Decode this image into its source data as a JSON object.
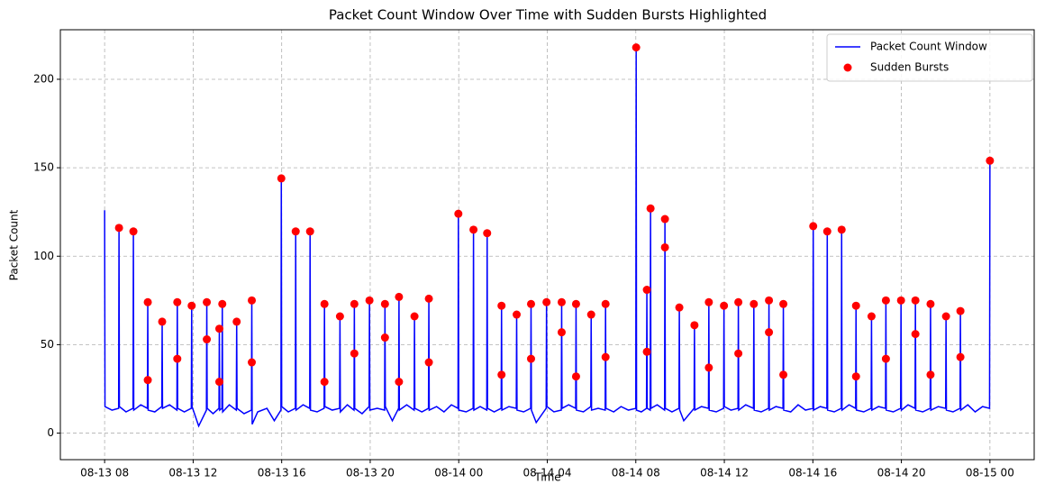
{
  "chart_data": {
    "type": "line",
    "title": "Packet Count Window Over Time with Sudden Bursts Highlighted",
    "x_label": "Time",
    "y_label": "Packet Count",
    "xlim": [
      "08-13 06:00",
      "08-15 02:00"
    ],
    "xticks": [
      "08-13 08",
      "08-13 12",
      "08-13 16",
      "08-13 20",
      "08-14 00",
      "08-14 04",
      "08-14 08",
      "08-14 12",
      "08-14 16",
      "08-14 20",
      "08-15 00"
    ],
    "ylim": [
      -15,
      228
    ],
    "yticks": [
      0,
      50,
      100,
      150,
      200
    ],
    "grid": true,
    "legend": "upper right",
    "series": [
      {
        "name": "Packet Count Window",
        "type": "line",
        "color": "#0000ff",
        "x": [
          "08-13 08:00",
          "08-13 08:01",
          "08-13 08:20",
          "08-13 08:38",
          "08-13 08:39",
          "08-13 08:40",
          "08-13 08:58",
          "08-13 09:17",
          "08-13 09:18",
          "08-13 09:19",
          "08-13 09:38",
          "08-13 09:56",
          "08-13 09:57",
          "08-13 09:58",
          "08-13 10:16",
          "08-13 10:35",
          "08-13 10:36",
          "08-13 10:37",
          "08-13 10:56",
          "08-13 11:16",
          "08-13 11:17",
          "08-13 11:18",
          "08-13 11:36",
          "08-13 11:55",
          "08-13 11:56",
          "08-13 11:57",
          "08-13 12:15",
          "08-13 12:36",
          "08-13 12:37",
          "08-13 12:38",
          "08-13 12:54",
          "08-13 13:10",
          "08-13 13:11",
          "08-13 13:12",
          "08-13 13:18",
          "08-13 13:19",
          "08-13 13:20",
          "08-13 13:38",
          "08-13 13:57",
          "08-13 13:58",
          "08-13 13:59",
          "08-13 14:18",
          "08-13 14:38",
          "08-13 14:39",
          "08-13 14:40",
          "08-13 14:55",
          "08-13 15:20",
          "08-13 15:40",
          "08-13 15:58",
          "08-13 15:59",
          "08-13 16:00",
          "08-13 16:18",
          "08-13 16:37",
          "08-13 16:38",
          "08-13 16:39",
          "08-13 16:58",
          "08-13 17:16",
          "08-13 17:17",
          "08-13 17:18",
          "08-13 17:36",
          "08-13 17:55",
          "08-13 17:56",
          "08-13 17:57",
          "08-13 18:17",
          "08-13 18:37",
          "08-13 18:38",
          "08-13 18:39",
          "08-13 18:58",
          "08-13 19:16",
          "08-13 19:17",
          "08-13 19:18",
          "08-13 19:38",
          "08-13 19:57",
          "08-13 19:58",
          "08-13 19:59",
          "08-13 20:19",
          "08-13 20:39",
          "08-13 20:40",
          "08-13 20:41",
          "08-13 21:00",
          "08-13 21:17",
          "08-13 21:18",
          "08-13 21:19",
          "08-13 21:39",
          "08-13 21:59",
          "08-13 22:00",
          "08-13 22:01",
          "08-13 22:20",
          "08-13 22:38",
          "08-13 22:39",
          "08-13 22:40",
          "08-13 23:00",
          "08-13 23:20",
          "08-13 23:40",
          "08-13 23:58",
          "08-13 23:59",
          "08-14 00:00",
          "08-14 00:20",
          "08-14 00:39",
          "08-14 00:40",
          "08-14 00:41",
          "08-14 00:58",
          "08-14 01:16",
          "08-14 01:17",
          "08-14 01:18",
          "08-14 01:36",
          "08-14 01:55",
          "08-14 01:56",
          "08-14 01:57",
          "08-14 02:16",
          "08-14 02:36",
          "08-14 02:37",
          "08-14 02:38",
          "08-14 02:56",
          "08-14 03:15",
          "08-14 03:16",
          "08-14 03:17",
          "08-14 03:30",
          "08-14 03:57",
          "08-14 03:58",
          "08-14 03:59",
          "08-14 04:18",
          "08-14 04:38",
          "08-14 04:39",
          "08-14 04:40",
          "08-14 04:58",
          "08-14 05:17",
          "08-14 05:18",
          "08-14 05:19",
          "08-14 05:38",
          "08-14 05:58",
          "08-14 05:59",
          "08-14 06:00",
          "08-14 06:18",
          "08-14 06:37",
          "08-14 06:38",
          "08-14 06:39",
          "08-14 07:00",
          "08-14 07:20",
          "08-14 07:40",
          "08-14 08:00",
          "08-14 08:01",
          "08-14 08:02",
          "08-14 08:15",
          "08-14 08:29",
          "08-14 08:30",
          "08-14 08:31",
          "08-14 08:39",
          "08-14 08:40",
          "08-14 08:41",
          "08-14 08:58",
          "08-14 09:18",
          "08-14 09:19",
          "08-14 09:20",
          "08-14 09:38",
          "08-14 09:57",
          "08-14 09:58",
          "08-14 09:59",
          "08-14 10:10",
          "08-14 10:38",
          "08-14 10:39",
          "08-14 10:40",
          "08-14 10:58",
          "08-14 11:17",
          "08-14 11:18",
          "08-14 11:19",
          "08-14 11:38",
          "08-14 11:58",
          "08-14 11:59",
          "08-14 12:00",
          "08-14 12:18",
          "08-14 12:37",
          "08-14 12:38",
          "08-14 12:39",
          "08-14 12:58",
          "08-14 13:19",
          "08-14 13:20",
          "08-14 13:21",
          "08-14 13:40",
          "08-14 14:00",
          "08-14 14:01",
          "08-14 14:02",
          "08-14 14:20",
          "08-14 14:39",
          "08-14 14:40",
          "08-14 14:41",
          "08-14 15:00",
          "08-14 15:20",
          "08-14 15:40",
          "08-14 16:00",
          "08-14 16:01",
          "08-14 16:02",
          "08-14 16:20",
          "08-14 16:38",
          "08-14 16:39",
          "08-14 16:40",
          "08-14 16:58",
          "08-14 17:17",
          "08-14 17:18",
          "08-14 17:19",
          "08-14 17:38",
          "08-14 17:56",
          "08-14 17:57",
          "08-14 17:58",
          "08-14 18:18",
          "08-14 18:38",
          "08-14 18:39",
          "08-14 18:40",
          "08-14 18:58",
          "08-14 19:17",
          "08-14 19:18",
          "08-14 19:19",
          "08-14 19:38",
          "08-14 19:58",
          "08-14 19:59",
          "08-14 20:00",
          "08-14 20:18",
          "08-14 20:37",
          "08-14 20:38",
          "08-14 20:39",
          "08-14 20:58",
          "08-14 21:18",
          "08-14 21:19",
          "08-14 21:20",
          "08-14 21:40",
          "08-14 22:00",
          "08-14 22:01",
          "08-14 22:02",
          "08-14 22:20",
          "08-14 22:39",
          "08-14 22:40",
          "08-14 22:41",
          "08-14 23:00",
          "08-14 23:20",
          "08-14 23:40",
          "08-14 23:59",
          "08-15 00:00"
        ],
        "values": [
          126,
          15,
          13,
          14,
          116,
          15,
          12,
          14,
          114,
          13,
          16,
          14,
          74,
          13,
          12,
          15,
          63,
          14,
          16,
          13,
          74,
          14,
          12,
          14,
          72,
          15,
          4,
          13,
          74,
          14,
          11,
          14,
          59,
          13,
          14,
          73,
          12,
          16,
          13,
          63,
          14,
          11,
          13,
          75,
          5,
          12,
          14,
          7,
          13,
          144,
          15,
          12,
          14,
          114,
          13,
          16,
          14,
          114,
          13,
          12,
          14,
          73,
          15,
          13,
          14,
          66,
          12,
          16,
          13,
          73,
          14,
          11,
          15,
          75,
          13,
          14,
          13,
          73,
          15,
          7,
          14,
          77,
          13,
          16,
          13,
          66,
          14,
          12,
          14,
          76,
          13,
          15,
          12,
          16,
          14,
          124,
          13,
          12,
          14,
          115,
          13,
          15,
          13,
          113,
          14,
          12,
          14,
          72,
          13,
          15,
          14,
          67,
          13,
          12,
          14,
          73,
          13,
          6,
          14,
          74,
          15,
          12,
          13,
          74,
          14,
          16,
          14,
          73,
          13,
          12,
          15,
          67,
          13,
          14,
          13,
          73,
          14,
          12,
          15,
          13,
          14,
          218,
          13,
          12,
          14,
          81,
          14,
          13,
          127,
          14,
          16,
          13,
          121,
          14,
          12,
          14,
          71,
          13,
          7,
          14,
          61,
          13,
          15,
          14,
          74,
          13,
          12,
          14,
          72,
          15,
          13,
          14,
          74,
          13,
          16,
          14,
          73,
          13,
          12,
          14,
          75,
          13,
          15,
          14,
          73,
          13,
          12,
          16,
          13,
          14,
          117,
          13,
          15,
          14,
          114,
          13,
          12,
          14,
          115,
          13,
          16,
          14,
          72,
          13,
          12,
          14,
          66,
          13,
          15,
          14,
          75,
          13,
          12,
          14,
          75,
          13,
          16,
          14,
          75,
          13,
          12,
          14,
          73,
          13,
          15,
          14,
          66,
          13,
          12,
          14,
          69,
          13,
          16,
          12,
          15,
          14,
          154
        ]
      },
      {
        "name": "Sudden Bursts",
        "type": "scatter",
        "color": "#ff0000",
        "x": [
          "08-13 08:39",
          "08-13 09:18",
          "08-13 09:57",
          "08-13 09:57",
          "08-13 10:36",
          "08-13 11:17",
          "08-13 11:17",
          "08-13 11:56",
          "08-13 12:37",
          "08-13 12:37",
          "08-13 13:11",
          "08-13 13:11",
          "08-13 13:19",
          "08-13 13:58",
          "08-13 14:39",
          "08-13 14:39",
          "08-13 15:59",
          "08-13 16:38",
          "08-13 17:17",
          "08-13 17:56",
          "08-13 17:56",
          "08-13 18:38",
          "08-13 19:17",
          "08-13 19:17",
          "08-13 19:58",
          "08-13 20:40",
          "08-13 20:40",
          "08-13 21:18",
          "08-13 21:18",
          "08-13 22:00",
          "08-13 22:39",
          "08-13 22:39",
          "08-13 23:59",
          "08-14 00:40",
          "08-14 01:17",
          "08-14 01:56",
          "08-14 01:56",
          "08-14 02:37",
          "08-14 03:16",
          "08-14 03:16",
          "08-14 03:58",
          "08-14 04:39",
          "08-14 04:39",
          "08-14 05:18",
          "08-14 05:18",
          "08-14 05:59",
          "08-14 06:38",
          "08-14 06:38",
          "08-14 08:01",
          "08-14 08:30",
          "08-14 08:30",
          "08-14 08:40",
          "08-14 09:19",
          "08-14 09:19",
          "08-14 09:58",
          "08-14 10:39",
          "08-14 11:18",
          "08-14 11:18",
          "08-14 11:59",
          "08-14 12:38",
          "08-14 12:38",
          "08-14 13:20",
          "08-14 14:01",
          "08-14 14:01",
          "08-14 14:40",
          "08-14 14:40",
          "08-14 16:01",
          "08-14 16:39",
          "08-14 17:18",
          "08-14 17:57",
          "08-14 17:57",
          "08-14 18:39",
          "08-14 19:18",
          "08-14 19:18",
          "08-14 19:59",
          "08-14 20:38",
          "08-14 20:38",
          "08-14 21:19",
          "08-14 21:19",
          "08-14 22:01",
          "08-14 22:40",
          "08-14 22:40",
          "08-15 00:00"
        ],
        "values": [
          116,
          114,
          74,
          30,
          63,
          74,
          42,
          72,
          74,
          53,
          59,
          29,
          73,
          63,
          75,
          40,
          144,
          114,
          114,
          73,
          29,
          66,
          73,
          45,
          75,
          73,
          54,
          77,
          29,
          66,
          76,
          40,
          124,
          115,
          113,
          72,
          33,
          67,
          73,
          42,
          74,
          74,
          57,
          73,
          32,
          67,
          73,
          43,
          218,
          81,
          46,
          127,
          121,
          105,
          71,
          61,
          74,
          37,
          72,
          74,
          45,
          73,
          75,
          57,
          73,
          33,
          117,
          114,
          115,
          72,
          32,
          66,
          75,
          42,
          75,
          75,
          56,
          73,
          33,
          66,
          69,
          43,
          154
        ]
      }
    ]
  }
}
